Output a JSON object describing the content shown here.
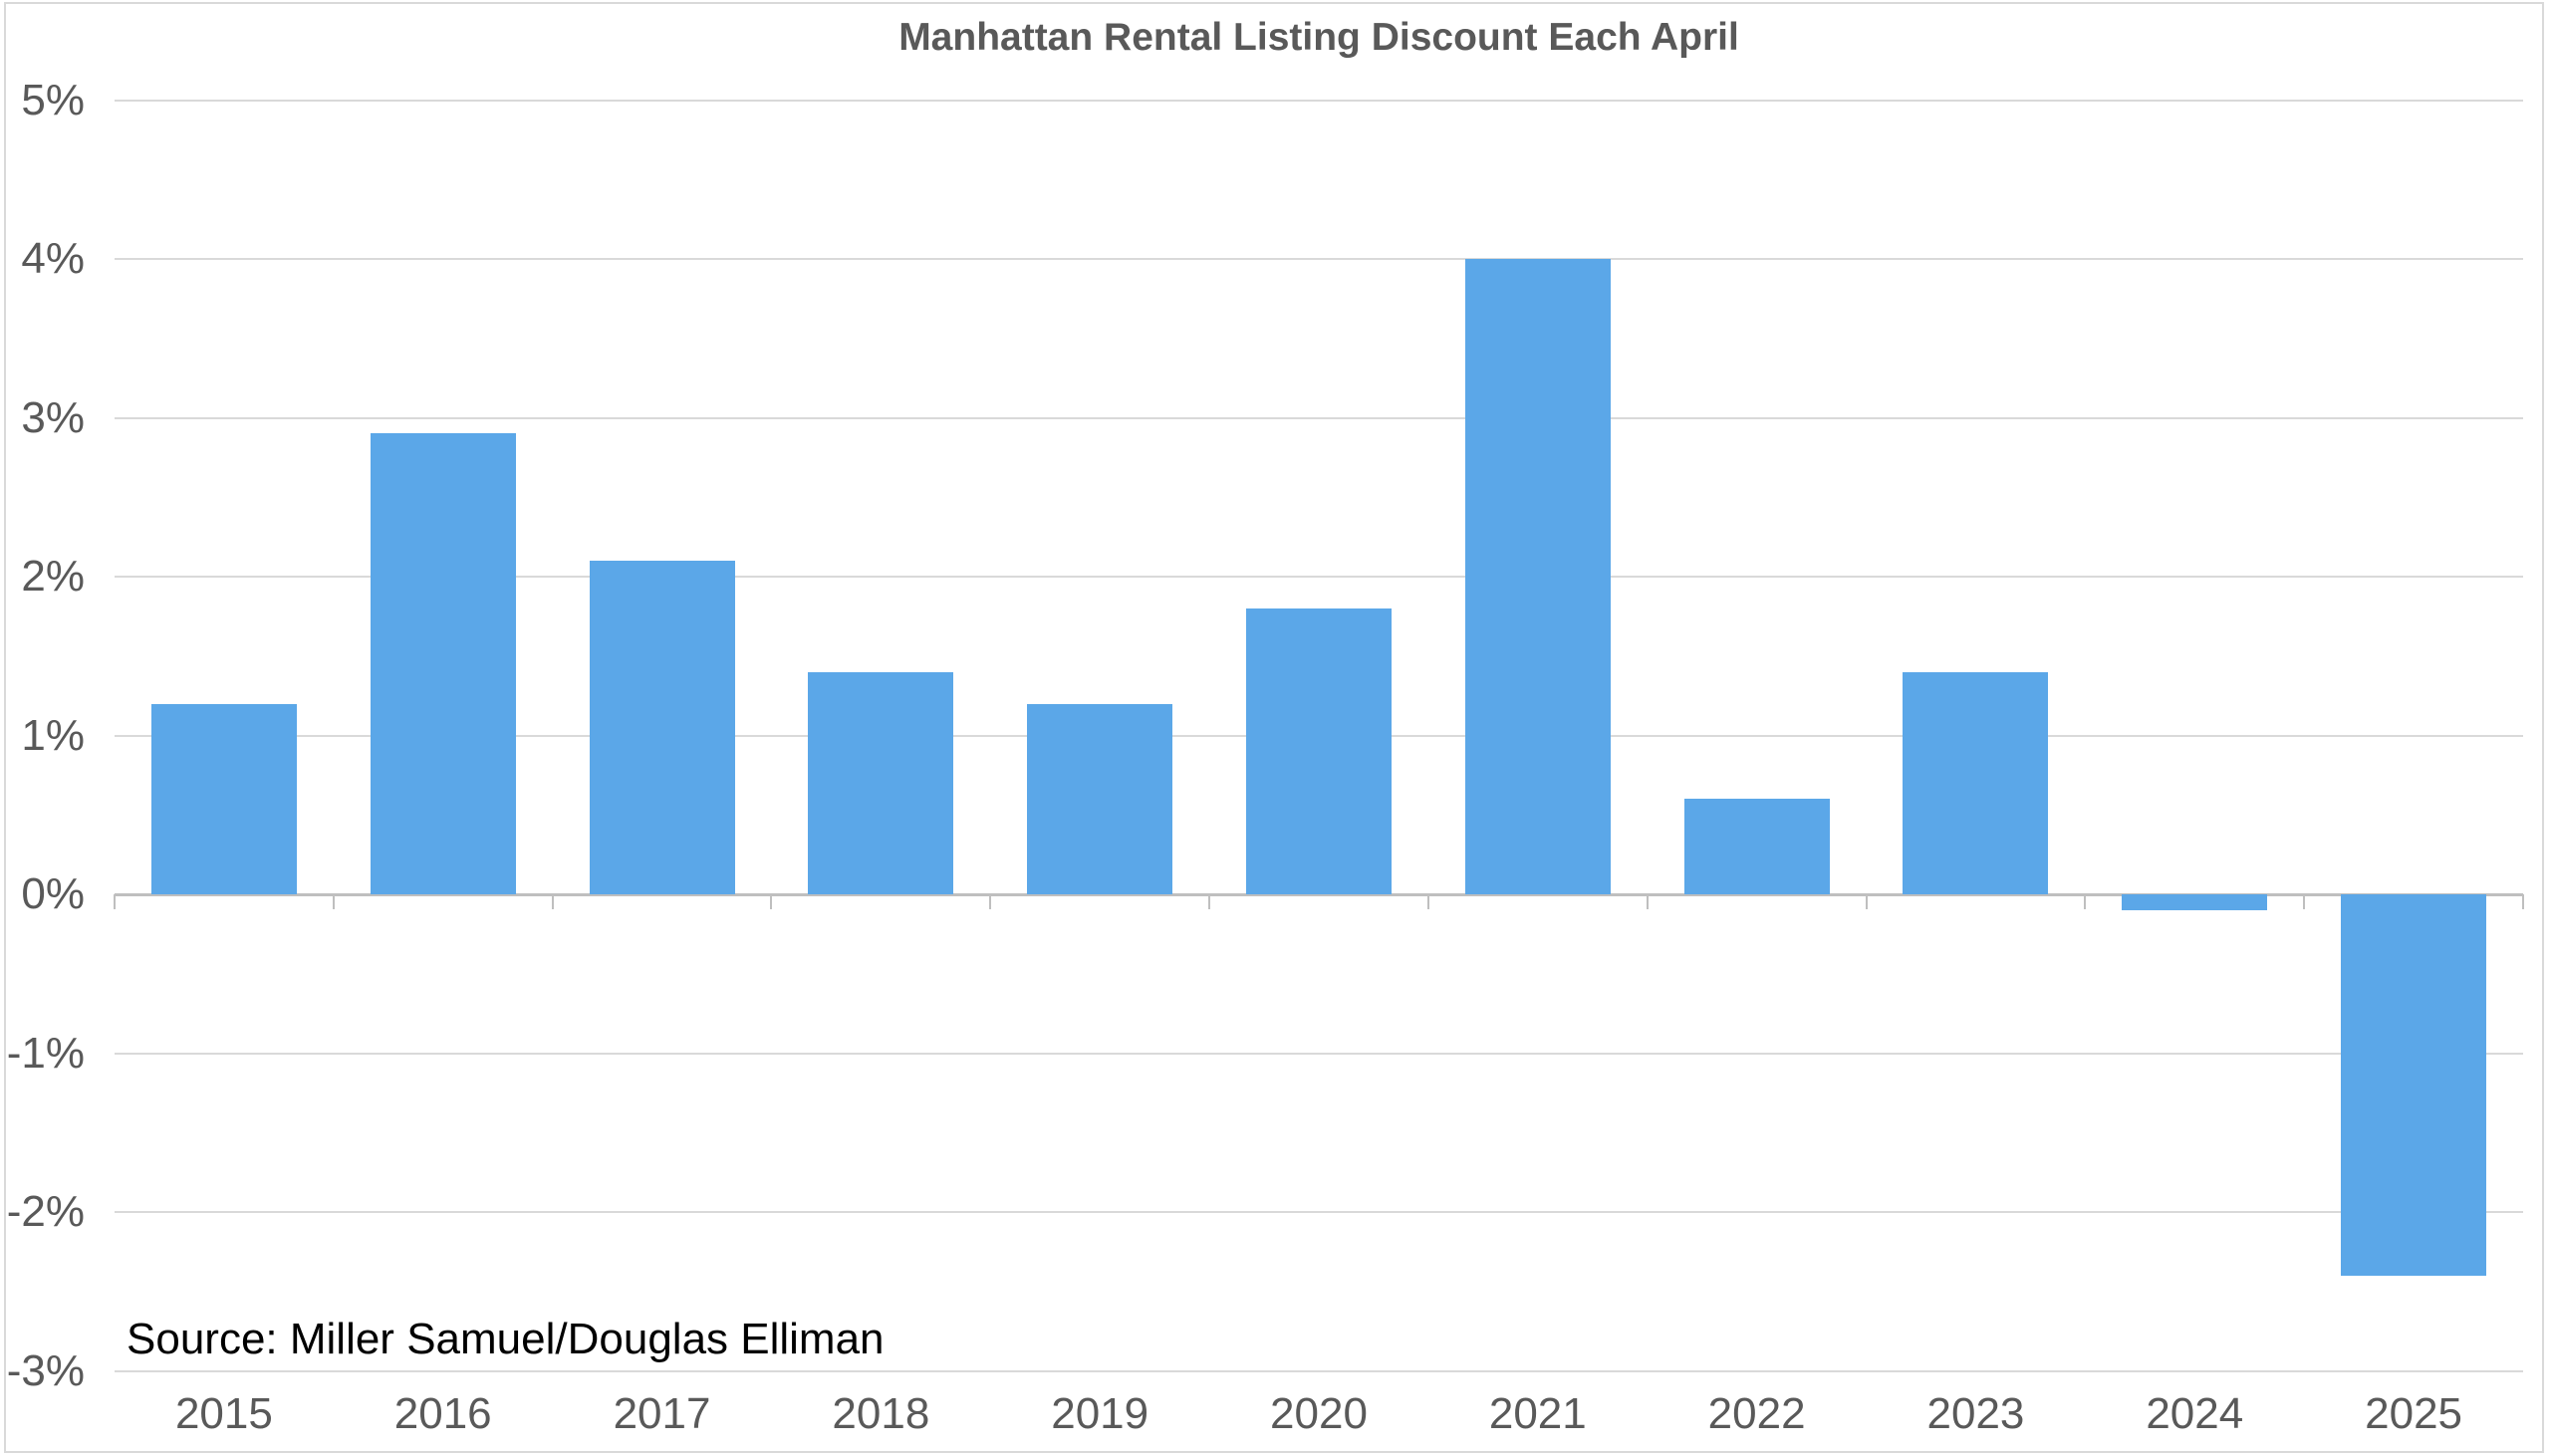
{
  "chart": {
    "title": "Manhattan Rental Listing Discount Each April",
    "source_note": "Source: Miller Samuel/Douglas Elliman"
  },
  "chart_data": {
    "type": "bar",
    "title": "Manhattan Rental Listing Discount Each April",
    "categories": [
      "2015",
      "2016",
      "2017",
      "2018",
      "2019",
      "2020",
      "2021",
      "2022",
      "2023",
      "2024",
      "2025"
    ],
    "values": [
      1.2,
      2.9,
      2.1,
      1.4,
      1.2,
      1.8,
      4.0,
      0.6,
      1.4,
      -0.1,
      -2.4
    ],
    "unit": "%",
    "xlabel": "",
    "ylabel": "",
    "ylim": [
      -3,
      5
    ],
    "yticks": [
      5,
      4,
      3,
      2,
      1,
      0,
      -1,
      -2,
      -3
    ],
    "ytick_labels": [
      "5%",
      "4%",
      "3%",
      "2%",
      "1%",
      "0%",
      "-1%",
      "-2%",
      "-3%"
    ],
    "grid": true,
    "legend": "none",
    "source_note": "Source: Miller Samuel/Douglas Elliman",
    "colors": {
      "bar": "#5BA7E8",
      "grid": "#D9D9D9",
      "axis": "#BFBFBF",
      "tick_label": "#595959",
      "title": "#595959",
      "source": "#000000",
      "frame_border": "#D9D9D9",
      "background": "#FFFFFF"
    }
  }
}
